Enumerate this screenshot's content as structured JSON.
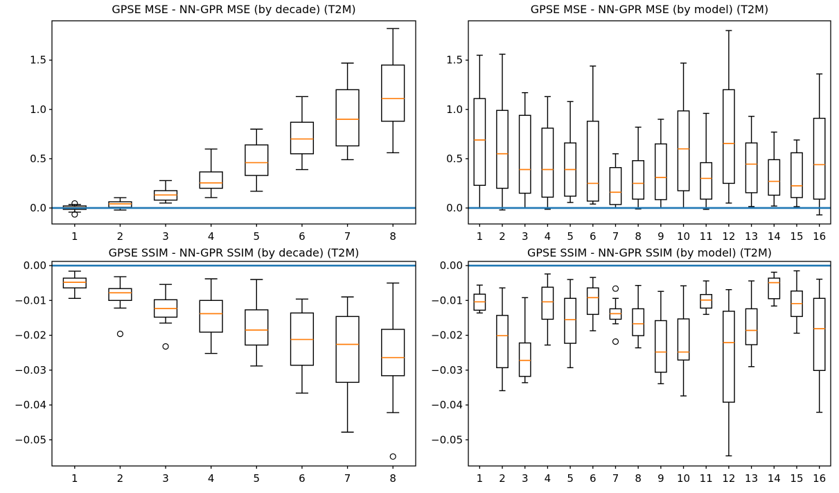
{
  "figure": {
    "background": "#ffffff"
  },
  "colors": {
    "box_edge": "#000000",
    "median": "#ff7f0e",
    "zero_line": "#1f77b4",
    "text": "#000000"
  },
  "chart_data": [
    {
      "id": "mse-by-decade",
      "type": "boxplot",
      "title": "GPSE MSE - NN-GPR MSE (by decade) (T2M)",
      "categories": [
        "1",
        "2",
        "3",
        "4",
        "5",
        "6",
        "7",
        "8"
      ],
      "ylim": [
        -0.162,
        1.899
      ],
      "grid": false,
      "zero_line_value": 0,
      "yticks": [
        {
          "value": 0.0,
          "label": "0.0"
        },
        {
          "value": 0.5,
          "label": "0.5"
        },
        {
          "value": 1.0,
          "label": "1.0"
        },
        {
          "value": 1.5,
          "label": "1.5"
        }
      ],
      "boxes": [
        {
          "whislo": -0.042,
          "q1": -0.014,
          "med": 0.006,
          "q3": 0.021,
          "whishi": 0.035,
          "fliers": [
            0.046,
            -0.065
          ]
        },
        {
          "whislo": -0.021,
          "q1": 0.007,
          "med": 0.042,
          "q3": 0.063,
          "whishi": 0.105,
          "fliers": []
        },
        {
          "whislo": 0.05,
          "q1": 0.08,
          "med": 0.132,
          "q3": 0.176,
          "whishi": 0.278,
          "fliers": []
        },
        {
          "whislo": 0.106,
          "q1": 0.2,
          "med": 0.255,
          "q3": 0.366,
          "whishi": 0.598,
          "fliers": []
        },
        {
          "whislo": 0.17,
          "q1": 0.33,
          "med": 0.46,
          "q3": 0.64,
          "whishi": 0.8,
          "fliers": []
        },
        {
          "whislo": 0.39,
          "q1": 0.55,
          "med": 0.7,
          "q3": 0.87,
          "whishi": 1.13,
          "fliers": []
        },
        {
          "whislo": 0.49,
          "q1": 0.63,
          "med": 0.9,
          "q3": 1.2,
          "whishi": 1.47,
          "fliers": []
        },
        {
          "whislo": 0.56,
          "q1": 0.88,
          "med": 1.11,
          "q3": 1.45,
          "whishi": 1.82,
          "fliers": []
        }
      ]
    },
    {
      "id": "mse-by-model",
      "type": "boxplot",
      "title": "GPSE MSE - NN-GPR MSE (by model) (T2M)",
      "categories": [
        "1",
        "2",
        "3",
        "4",
        "5",
        "6",
        "7",
        "8",
        "9",
        "10",
        "11",
        "12",
        "13",
        "14",
        "15",
        "16"
      ],
      "ylim": [
        -0.162,
        1.899
      ],
      "grid": false,
      "zero_line_value": 0,
      "yticks": [
        {
          "value": 0.0,
          "label": "0.0"
        },
        {
          "value": 0.5,
          "label": "0.5"
        },
        {
          "value": 1.0,
          "label": "1.0"
        },
        {
          "value": 1.5,
          "label": "1.5"
        }
      ],
      "boxes": [
        {
          "whislo": 0.0,
          "q1": 0.23,
          "med": 0.69,
          "q3": 1.11,
          "whishi": 1.55,
          "fliers": []
        },
        {
          "whislo": -0.02,
          "q1": 0.2,
          "med": 0.55,
          "q3": 0.99,
          "whishi": 1.56,
          "fliers": []
        },
        {
          "whislo": 0.0,
          "q1": 0.15,
          "med": 0.39,
          "q3": 0.94,
          "whishi": 1.17,
          "fliers": []
        },
        {
          "whislo": -0.013,
          "q1": 0.11,
          "med": 0.39,
          "q3": 0.81,
          "whishi": 1.13,
          "fliers": []
        },
        {
          "whislo": 0.056,
          "q1": 0.12,
          "med": 0.39,
          "q3": 0.66,
          "whishi": 1.08,
          "fliers": []
        },
        {
          "whislo": 0.04,
          "q1": 0.07,
          "med": 0.25,
          "q3": 0.88,
          "whishi": 1.44,
          "fliers": []
        },
        {
          "whislo": 0.0,
          "q1": 0.035,
          "med": 0.16,
          "q3": 0.41,
          "whishi": 0.55,
          "fliers": []
        },
        {
          "whislo": -0.01,
          "q1": 0.09,
          "med": 0.25,
          "q3": 0.48,
          "whishi": 0.82,
          "fliers": []
        },
        {
          "whislo": 0.0,
          "q1": 0.085,
          "med": 0.31,
          "q3": 0.65,
          "whishi": 0.9,
          "fliers": []
        },
        {
          "whislo": 0.0,
          "q1": 0.175,
          "med": 0.6,
          "q3": 0.985,
          "whishi": 1.47,
          "fliers": []
        },
        {
          "whislo": -0.014,
          "q1": 0.09,
          "med": 0.3,
          "q3": 0.46,
          "whishi": 0.96,
          "fliers": []
        },
        {
          "whislo": 0.05,
          "q1": 0.25,
          "med": 0.655,
          "q3": 1.2,
          "whishi": 1.8,
          "fliers": []
        },
        {
          "whislo": 0.015,
          "q1": 0.155,
          "med": 0.445,
          "q3": 0.66,
          "whishi": 0.93,
          "fliers": []
        },
        {
          "whislo": 0.02,
          "q1": 0.13,
          "med": 0.27,
          "q3": 0.49,
          "whishi": 0.77,
          "fliers": []
        },
        {
          "whislo": 0.014,
          "q1": 0.106,
          "med": 0.225,
          "q3": 0.56,
          "whishi": 0.69,
          "fliers": []
        },
        {
          "whislo": -0.07,
          "q1": 0.09,
          "med": 0.44,
          "q3": 0.91,
          "whishi": 1.36,
          "fliers": []
        }
      ]
    },
    {
      "id": "ssim-by-decade",
      "type": "boxplot",
      "title": "GPSE SSIM - NN-GPR SSIM (by decade) (T2M)",
      "categories": [
        "1",
        "2",
        "3",
        "4",
        "5",
        "6",
        "7",
        "8"
      ],
      "ylim": [
        -0.0575,
        0.0012
      ],
      "grid": false,
      "zero_line_value": 0,
      "yticks": [
        {
          "value": 0.0,
          "label": "0.00"
        },
        {
          "value": -0.01,
          "label": "−0.01"
        },
        {
          "value": -0.02,
          "label": "−0.02"
        },
        {
          "value": -0.03,
          "label": "−0.03"
        },
        {
          "value": -0.04,
          "label": "−0.04"
        },
        {
          "value": -0.05,
          "label": "−0.05"
        }
      ],
      "boxes": [
        {
          "whislo": -0.0094,
          "q1": -0.0064,
          "med": -0.0048,
          "q3": -0.0036,
          "whishi": -0.0016,
          "fliers": []
        },
        {
          "whislo": -0.0122,
          "q1": -0.01,
          "med": -0.0078,
          "q3": -0.0066,
          "whishi": -0.0032,
          "fliers": [
            -0.0196
          ]
        },
        {
          "whislo": -0.0165,
          "q1": -0.0148,
          "med": -0.0123,
          "q3": -0.0098,
          "whishi": -0.0054,
          "fliers": [
            -0.0232
          ]
        },
        {
          "whislo": -0.0252,
          "q1": -0.0191,
          "med": -0.0138,
          "q3": -0.01,
          "whishi": -0.0038,
          "fliers": []
        },
        {
          "whislo": -0.0288,
          "q1": -0.0228,
          "med": -0.0185,
          "q3": -0.0127,
          "whishi": -0.004,
          "fliers": []
        },
        {
          "whislo": -0.0366,
          "q1": -0.0286,
          "med": -0.0212,
          "q3": -0.0136,
          "whishi": -0.0096,
          "fliers": []
        },
        {
          "whislo": -0.0478,
          "q1": -0.0335,
          "med": -0.0226,
          "q3": -0.0146,
          "whishi": -0.009,
          "fliers": []
        },
        {
          "whislo": -0.0422,
          "q1": -0.0316,
          "med": -0.0264,
          "q3": -0.0183,
          "whishi": -0.005,
          "fliers": [
            -0.0548
          ]
        }
      ]
    },
    {
      "id": "ssim-by-model",
      "type": "boxplot",
      "title": "GPSE SSIM - NN-GPR SSIM (by model) (T2M)",
      "categories": [
        "1",
        "2",
        "3",
        "4",
        "5",
        "6",
        "7",
        "8",
        "9",
        "10",
        "11",
        "12",
        "13",
        "14",
        "15",
        "16"
      ],
      "ylim": [
        -0.0575,
        0.0012
      ],
      "grid": false,
      "zero_line_value": 0,
      "yticks": [
        {
          "value": 0.0,
          "label": "0.00"
        },
        {
          "value": -0.01,
          "label": "−0.01"
        },
        {
          "value": -0.02,
          "label": "−0.02"
        },
        {
          "value": -0.03,
          "label": "−0.03"
        },
        {
          "value": -0.04,
          "label": "−0.04"
        },
        {
          "value": -0.05,
          "label": "−0.05"
        }
      ],
      "boxes": [
        {
          "whislo": -0.0136,
          "q1": -0.0128,
          "med": -0.0104,
          "q3": -0.0082,
          "whishi": -0.0056,
          "fliers": []
        },
        {
          "whislo": -0.0359,
          "q1": -0.0293,
          "med": -0.0201,
          "q3": -0.0143,
          "whishi": -0.0064,
          "fliers": []
        },
        {
          "whislo": -0.0336,
          "q1": -0.0318,
          "med": -0.0272,
          "q3": -0.0222,
          "whishi": -0.0092,
          "fliers": []
        },
        {
          "whislo": -0.0228,
          "q1": -0.0154,
          "med": -0.0104,
          "q3": -0.0062,
          "whishi": -0.0024,
          "fliers": []
        },
        {
          "whislo": -0.0293,
          "q1": -0.0223,
          "med": -0.0155,
          "q3": -0.0094,
          "whishi": -0.004,
          "fliers": []
        },
        {
          "whislo": -0.0187,
          "q1": -0.014,
          "med": -0.0092,
          "q3": -0.0064,
          "whishi": -0.0034,
          "fliers": []
        },
        {
          "whislo": -0.0167,
          "q1": -0.0154,
          "med": -0.0138,
          "q3": -0.0124,
          "whishi": -0.0094,
          "fliers": [
            -0.0066,
            -0.0218
          ]
        },
        {
          "whislo": -0.0236,
          "q1": -0.0201,
          "med": -0.0167,
          "q3": -0.0124,
          "whishi": -0.0057,
          "fliers": []
        },
        {
          "whislo": -0.0339,
          "q1": -0.0306,
          "med": -0.0248,
          "q3": -0.0158,
          "whishi": -0.0074,
          "fliers": []
        },
        {
          "whislo": -0.0374,
          "q1": -0.0271,
          "med": -0.0248,
          "q3": -0.0153,
          "whishi": -0.0058,
          "fliers": []
        },
        {
          "whislo": -0.014,
          "q1": -0.0122,
          "med": -0.0099,
          "q3": -0.0083,
          "whishi": -0.0044,
          "fliers": []
        },
        {
          "whislo": -0.0546,
          "q1": -0.0392,
          "med": -0.0221,
          "q3": -0.0131,
          "whishi": -0.0069,
          "fliers": []
        },
        {
          "whislo": -0.029,
          "q1": -0.0227,
          "med": -0.0186,
          "q3": -0.0124,
          "whishi": -0.0044,
          "fliers": []
        },
        {
          "whislo": -0.0116,
          "q1": -0.0095,
          "med": -0.0049,
          "q3": -0.0036,
          "whishi": -0.0019,
          "fliers": []
        },
        {
          "whislo": -0.0194,
          "q1": -0.0146,
          "med": -0.0109,
          "q3": -0.0073,
          "whishi": -0.0015,
          "fliers": []
        },
        {
          "whislo": -0.0421,
          "q1": -0.0301,
          "med": -0.0181,
          "q3": -0.0094,
          "whishi": -0.0039,
          "fliers": []
        }
      ]
    }
  ]
}
